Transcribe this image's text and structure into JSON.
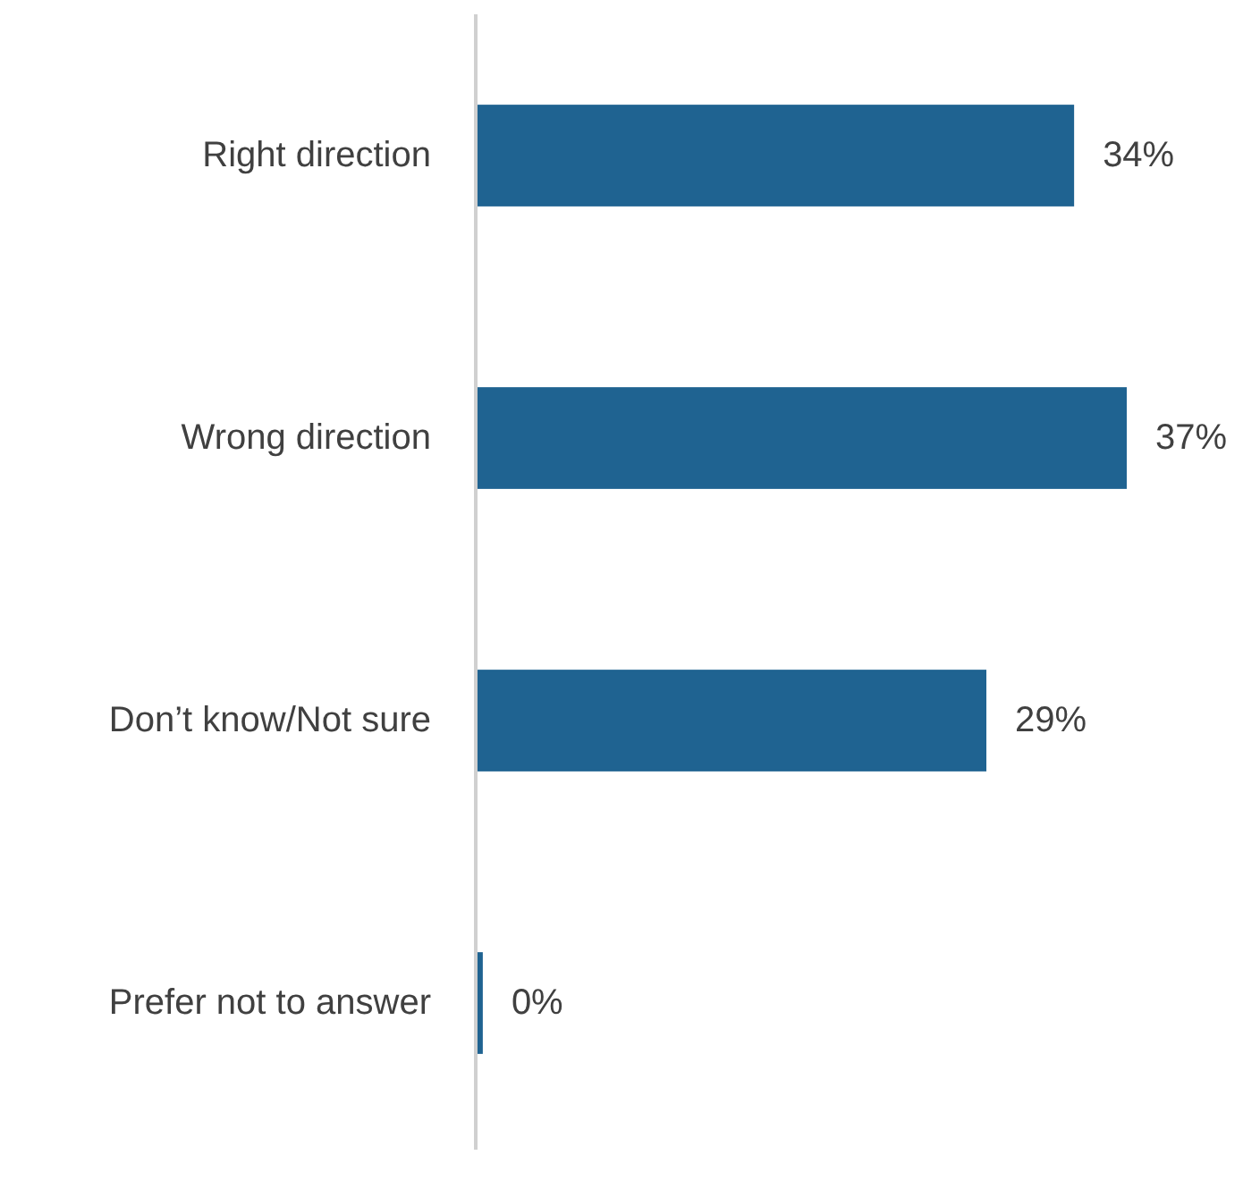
{
  "chart_data": {
    "type": "bar",
    "orientation": "horizontal",
    "categories": [
      "Right direction",
      "Wrong direction",
      "Don’t know/Not sure",
      "Prefer not to answer"
    ],
    "values": [
      34,
      37,
      29,
      0.3
    ],
    "color": "#1f6391",
    "value_labels": [
      "34%",
      "37%",
      "29%",
      "0%"
    ],
    "grid": false
  }
}
